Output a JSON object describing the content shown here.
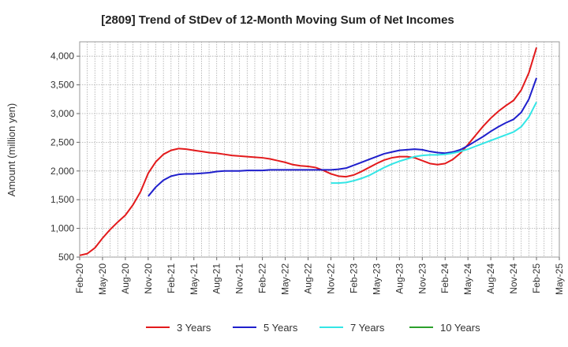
{
  "chart_data": {
    "type": "line",
    "title": "[2809]  Trend of StDev of 12-Month Moving Sum of Net Incomes",
    "ylabel": "Amount (million yen)",
    "xlabel": "",
    "ylim": [
      500,
      4250
    ],
    "yticks": [
      500,
      1000,
      1500,
      2000,
      2500,
      3000,
      3500,
      4000
    ],
    "ytick_labels": [
      "500",
      "1,000",
      "1,500",
      "2,000",
      "2,500",
      "3,000",
      "3,500",
      "4,000"
    ],
    "x_start": "2020-02",
    "x_end": "2025-05",
    "xtick_labels": [
      "Feb-20",
      "May-20",
      "Aug-20",
      "Nov-20",
      "Feb-21",
      "May-21",
      "Aug-21",
      "Nov-21",
      "Feb-22",
      "May-22",
      "Aug-22",
      "Nov-22",
      "Feb-23",
      "May-23",
      "Aug-23",
      "Nov-23",
      "Feb-24",
      "May-24",
      "Aug-24",
      "Nov-24",
      "Feb-25",
      "May-25"
    ],
    "grid": true,
    "legend_position": "bottom",
    "series": [
      {
        "name": "3 Years",
        "color": "#e31a1c",
        "x": [
          "2020-02",
          "2020-03",
          "2020-04",
          "2020-05",
          "2020-06",
          "2020-07",
          "2020-08",
          "2020-09",
          "2020-10",
          "2020-11",
          "2020-12",
          "2021-01",
          "2021-02",
          "2021-03",
          "2021-04",
          "2021-05",
          "2021-06",
          "2021-07",
          "2021-08",
          "2021-09",
          "2021-10",
          "2021-11",
          "2021-12",
          "2022-01",
          "2022-02",
          "2022-03",
          "2022-04",
          "2022-05",
          "2022-06",
          "2022-07",
          "2022-08",
          "2022-09",
          "2022-10",
          "2022-11",
          "2022-12",
          "2023-01",
          "2023-02",
          "2023-03",
          "2023-04",
          "2023-05",
          "2023-06",
          "2023-07",
          "2023-08",
          "2023-09",
          "2023-10",
          "2023-11",
          "2023-12",
          "2024-01",
          "2024-02",
          "2024-03",
          "2024-04",
          "2024-05",
          "2024-06",
          "2024-07",
          "2024-08",
          "2024-09",
          "2024-10",
          "2024-11",
          "2024-12",
          "2025-01",
          "2025-02"
        ],
        "values": [
          530,
          560,
          660,
          830,
          980,
          1110,
          1230,
          1410,
          1640,
          1960,
          2160,
          2290,
          2360,
          2390,
          2380,
          2360,
          2340,
          2320,
          2310,
          2290,
          2270,
          2260,
          2250,
          2240,
          2230,
          2210,
          2180,
          2150,
          2110,
          2090,
          2080,
          2060,
          2010,
          1950,
          1910,
          1900,
          1930,
          1990,
          2060,
          2130,
          2190,
          2230,
          2250,
          2250,
          2230,
          2180,
          2130,
          2110,
          2130,
          2200,
          2310,
          2460,
          2620,
          2780,
          2920,
          3040,
          3140,
          3230,
          3410,
          3710,
          4150
        ]
      },
      {
        "name": "5 Years",
        "color": "#1f1fcc",
        "x": [
          "2020-11",
          "2020-12",
          "2021-01",
          "2021-02",
          "2021-03",
          "2021-04",
          "2021-05",
          "2021-06",
          "2021-07",
          "2021-08",
          "2021-09",
          "2021-10",
          "2021-11",
          "2021-12",
          "2022-01",
          "2022-02",
          "2022-03",
          "2022-04",
          "2022-05",
          "2022-06",
          "2022-07",
          "2022-08",
          "2022-09",
          "2022-10",
          "2022-11",
          "2022-12",
          "2023-01",
          "2023-02",
          "2023-03",
          "2023-04",
          "2023-05",
          "2023-06",
          "2023-07",
          "2023-08",
          "2023-09",
          "2023-10",
          "2023-11",
          "2023-12",
          "2024-01",
          "2024-02",
          "2024-03",
          "2024-04",
          "2024-05",
          "2024-06",
          "2024-07",
          "2024-08",
          "2024-09",
          "2024-10",
          "2024-11",
          "2024-12",
          "2025-01",
          "2025-02"
        ],
        "values": [
          1560,
          1720,
          1840,
          1910,
          1940,
          1950,
          1950,
          1960,
          1970,
          1990,
          2000,
          2000,
          2000,
          2010,
          2010,
          2010,
          2020,
          2020,
          2020,
          2020,
          2020,
          2020,
          2020,
          2020,
          2020,
          2030,
          2050,
          2100,
          2150,
          2200,
          2250,
          2300,
          2330,
          2360,
          2370,
          2380,
          2370,
          2340,
          2320,
          2310,
          2330,
          2370,
          2440,
          2520,
          2600,
          2690,
          2770,
          2840,
          2900,
          3020,
          3250,
          3620
        ]
      },
      {
        "name": "7 Years",
        "color": "#33e6e6",
        "x": [
          "2022-11",
          "2022-12",
          "2023-01",
          "2023-02",
          "2023-03",
          "2023-04",
          "2023-05",
          "2023-06",
          "2023-07",
          "2023-08",
          "2023-09",
          "2023-10",
          "2023-11",
          "2023-12",
          "2024-01",
          "2024-02",
          "2024-03",
          "2024-04",
          "2024-05",
          "2024-06",
          "2024-07",
          "2024-08",
          "2024-09",
          "2024-10",
          "2024-11",
          "2024-12",
          "2025-01",
          "2025-02"
        ],
        "values": [
          1790,
          1790,
          1800,
          1830,
          1870,
          1920,
          1990,
          2060,
          2120,
          2170,
          2210,
          2250,
          2270,
          2280,
          2280,
          2290,
          2310,
          2340,
          2380,
          2430,
          2480,
          2530,
          2580,
          2630,
          2680,
          2770,
          2940,
          3200
        ]
      },
      {
        "name": "10 Years",
        "color": "#2ca02c",
        "x": [],
        "values": []
      }
    ]
  }
}
